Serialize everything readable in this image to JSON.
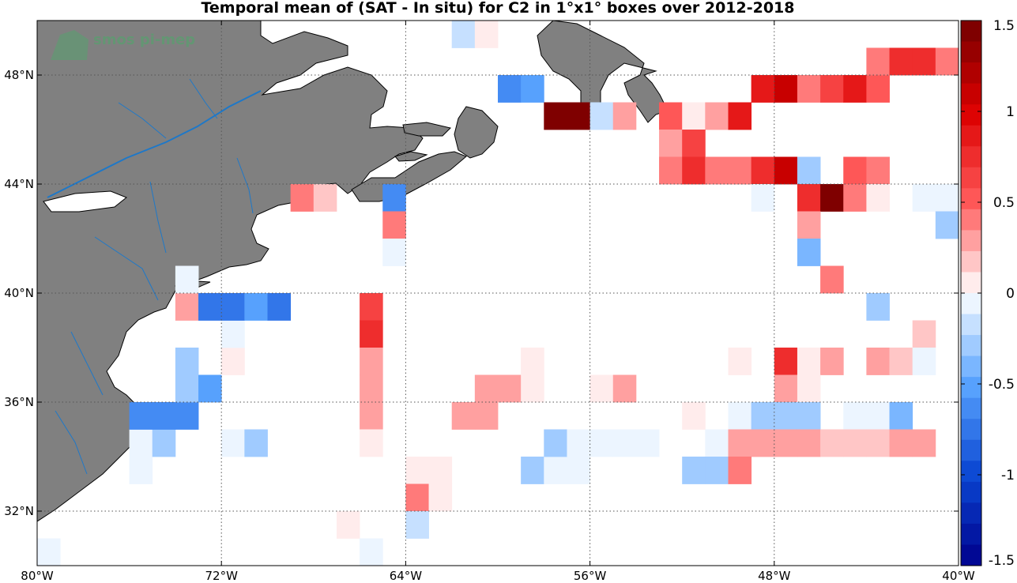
{
  "chart_data": {
    "type": "heatmap",
    "title": "Temporal mean of (SAT - In situ) for C2 in 1°x1° boxes over 2012-2018",
    "x_axis": {
      "range": [
        -80,
        -40
      ],
      "ticks": [
        -80,
        -72,
        -64,
        -56,
        -48,
        -40
      ],
      "tick_labels": [
        "80°W",
        "72°W",
        "64°W",
        "56°W",
        "48°W",
        "40°W"
      ]
    },
    "y_axis": {
      "range": [
        30,
        50
      ],
      "ticks": [
        32,
        36,
        40,
        44,
        48
      ],
      "tick_labels": [
        "32°N",
        "36°N",
        "40°N",
        "44°N",
        "48°N"
      ]
    },
    "grid": true,
    "colorbar": {
      "range": [
        -1.5,
        1.5
      ],
      "ticks": [
        1.5,
        1,
        0.5,
        0,
        -0.5,
        -1,
        -1.5
      ],
      "tick_labels": [
        "1.5",
        "1",
        "0.5",
        "0",
        "-0.5",
        "-1",
        "-1.5"
      ],
      "placement": "right"
    },
    "logo": "smos pi-mep",
    "cells": [
      {
        "lon": -79.5,
        "lat": 30.5,
        "value": -0.1
      },
      {
        "lon": -75.5,
        "lat": 33.5,
        "value": -0.1
      },
      {
        "lon": -75.5,
        "lat": 34.5,
        "value": -0.1
      },
      {
        "lon": -74.5,
        "lat": 34.5,
        "value": -0.3
      },
      {
        "lon": -75.5,
        "lat": 35.5,
        "value": -0.6
      },
      {
        "lon": -74.5,
        "lat": 35.5,
        "value": -0.6
      },
      {
        "lon": -73.5,
        "lat": 35.5,
        "value": -0.6
      },
      {
        "lon": -73.5,
        "lat": 36.5,
        "value": -0.3
      },
      {
        "lon": -72.5,
        "lat": 36.5,
        "value": -0.5
      },
      {
        "lon": -73.5,
        "lat": 37.5,
        "value": -0.3
      },
      {
        "lon": -71.5,
        "lat": 34.5,
        "value": -0.1
      },
      {
        "lon": -70.5,
        "lat": 34.5,
        "value": -0.3
      },
      {
        "lon": -71.5,
        "lat": 37.5,
        "value": 0.1
      },
      {
        "lon": -71.5,
        "lat": 38.5,
        "value": -0.1
      },
      {
        "lon": -73.5,
        "lat": 39.5,
        "value": 0.3
      },
      {
        "lon": -72.5,
        "lat": 39.5,
        "value": -0.7
      },
      {
        "lon": -71.5,
        "lat": 39.5,
        "value": -0.8
      },
      {
        "lon": -70.5,
        "lat": 39.5,
        "value": -0.5
      },
      {
        "lon": -69.5,
        "lat": 39.5,
        "value": -0.7
      },
      {
        "lon": -73.5,
        "lat": 40.5,
        "value": -0.05
      },
      {
        "lon": -68.5,
        "lat": 43.5,
        "value": 0.4
      },
      {
        "lon": -67.5,
        "lat": 43.5,
        "value": 0.15
      },
      {
        "lon": -64.5,
        "lat": 43.5,
        "value": -0.6
      },
      {
        "lon": -64.5,
        "lat": 42.5,
        "value": 0.4
      },
      {
        "lon": -64.5,
        "lat": 41.5,
        "value": -0.1
      },
      {
        "lon": -65.5,
        "lat": 39.5,
        "value": 0.6
      },
      {
        "lon": -65.5,
        "lat": 38.5,
        "value": 0.8
      },
      {
        "lon": -65.5,
        "lat": 37.5,
        "value": 0.25
      },
      {
        "lon": -65.5,
        "lat": 36.5,
        "value": 0.25
      },
      {
        "lon": -65.5,
        "lat": 35.5,
        "value": 0.25
      },
      {
        "lon": -65.5,
        "lat": 34.5,
        "value": 0.1
      },
      {
        "lon": -66.5,
        "lat": 31.5,
        "value": 0.1
      },
      {
        "lon": -65.5,
        "lat": 30.5,
        "value": -0.1
      },
      {
        "lon": -63.5,
        "lat": 33.5,
        "value": 0.1
      },
      {
        "lon": -62.5,
        "lat": 33.5,
        "value": 0.1
      },
      {
        "lon": -63.5,
        "lat": 32.5,
        "value": 0.35
      },
      {
        "lon": -62.5,
        "lat": 32.5,
        "value": 0.1
      },
      {
        "lon": -63.5,
        "lat": 31.5,
        "value": -0.2
      },
      {
        "lon": -61.5,
        "lat": 35.5,
        "value": 0.3
      },
      {
        "lon": -60.5,
        "lat": 35.5,
        "value": 0.3
      },
      {
        "lon": -60.5,
        "lat": 36.5,
        "value": 0.25
      },
      {
        "lon": -59.5,
        "lat": 36.5,
        "value": 0.25
      },
      {
        "lon": -58.5,
        "lat": 37.5,
        "value": 0.1
      },
      {
        "lon": -58.5,
        "lat": 36.5,
        "value": 0.1
      },
      {
        "lon": -58.5,
        "lat": 33.5,
        "value": -0.25
      },
      {
        "lon": -57.5,
        "lat": 33.5,
        "value": -0.1
      },
      {
        "lon": -56.5,
        "lat": 33.5,
        "value": -0.1
      },
      {
        "lon": -57.5,
        "lat": 34.5,
        "value": -0.25
      },
      {
        "lon": -56.5,
        "lat": 34.5,
        "value": -0.1
      },
      {
        "lon": -55.5,
        "lat": 34.5,
        "value": -0.1
      },
      {
        "lon": -54.5,
        "lat": 34.5,
        "value": -0.1
      },
      {
        "lon": -53.5,
        "lat": 34.5,
        "value": -0.1
      },
      {
        "lon": -55.5,
        "lat": 36.5,
        "value": 0.1
      },
      {
        "lon": -54.5,
        "lat": 36.5,
        "value": 0.25
      },
      {
        "lon": -61.5,
        "lat": 49.5,
        "value": -0.2
      },
      {
        "lon": -60.5,
        "lat": 49.5,
        "value": 0.1
      },
      {
        "lon": -59.5,
        "lat": 47.5,
        "value": -0.6
      },
      {
        "lon": -58.5,
        "lat": 47.5,
        "value": -0.5
      },
      {
        "lon": -57.5,
        "lat": 46.5,
        "value": 1.4
      },
      {
        "lon": -56.5,
        "lat": 46.5,
        "value": 1.4
      },
      {
        "lon": -55.5,
        "lat": 46.5,
        "value": -0.2
      },
      {
        "lon": -54.5,
        "lat": 46.5,
        "value": 0.25
      },
      {
        "lon": -52.5,
        "lat": 46.5,
        "value": 0.5
      },
      {
        "lon": -51.5,
        "lat": 46.5,
        "value": 0.1
      },
      {
        "lon": -50.5,
        "lat": 46.5,
        "value": 0.3
      },
      {
        "lon": -49.5,
        "lat": 46.5,
        "value": 0.85
      },
      {
        "lon": -52.5,
        "lat": 45.5,
        "value": 0.25
      },
      {
        "lon": -51.5,
        "lat": 45.5,
        "value": 0.65
      },
      {
        "lon": -52.5,
        "lat": 44.5,
        "value": 0.4
      },
      {
        "lon": -51.5,
        "lat": 44.5,
        "value": 0.75
      },
      {
        "lon": -50.5,
        "lat": 44.5,
        "value": 0.4
      },
      {
        "lon": -49.5,
        "lat": 44.5,
        "value": 0.35
      },
      {
        "lon": -48.5,
        "lat": 44.5,
        "value": 0.75
      },
      {
        "lon": -47.5,
        "lat": 44.5,
        "value": 1.05
      },
      {
        "lon": -46.5,
        "lat": 44.5,
        "value": -0.3
      },
      {
        "lon": -44.5,
        "lat": 44.5,
        "value": 0.5
      },
      {
        "lon": -43.5,
        "lat": 44.5,
        "value": 0.4
      },
      {
        "lon": -48.5,
        "lat": 47.5,
        "value": 0.85
      },
      {
        "lon": -47.5,
        "lat": 47.5,
        "value": 1.05
      },
      {
        "lon": -46.5,
        "lat": 47.5,
        "value": 0.35
      },
      {
        "lon": -45.5,
        "lat": 47.5,
        "value": 0.6
      },
      {
        "lon": -44.5,
        "lat": 47.5,
        "value": 0.9
      },
      {
        "lon": -43.5,
        "lat": 47.5,
        "value": 0.5
      },
      {
        "lon": -43.5,
        "lat": 48.5,
        "value": 0.35
      },
      {
        "lon": -42.5,
        "lat": 48.5,
        "value": 0.8
      },
      {
        "lon": -41.5,
        "lat": 48.5,
        "value": 0.8
      },
      {
        "lon": -40.5,
        "lat": 48.5,
        "value": 0.4
      },
      {
        "lon": -48.5,
        "lat": 43.5,
        "value": -0.1
      },
      {
        "lon": -46.5,
        "lat": 43.5,
        "value": 0.8
      },
      {
        "lon": -45.5,
        "lat": 43.5,
        "value": 1.4
      },
      {
        "lon": -44.5,
        "lat": 43.5,
        "value": 0.4
      },
      {
        "lon": -43.5,
        "lat": 43.5,
        "value": 0.1
      },
      {
        "lon": -41.5,
        "lat": 43.5,
        "value": -0.1
      },
      {
        "lon": -40.5,
        "lat": 43.5,
        "value": -0.1
      },
      {
        "lon": -40.5,
        "lat": 42.5,
        "value": -0.25
      },
      {
        "lon": -46.5,
        "lat": 42.5,
        "value": 0.25
      },
      {
        "lon": -46.5,
        "lat": 41.5,
        "value": -0.45
      },
      {
        "lon": -45.5,
        "lat": 40.5,
        "value": 0.45
      },
      {
        "lon": -43.5,
        "lat": 39.5,
        "value": -0.25
      },
      {
        "lon": -41.5,
        "lat": 38.5,
        "value": 0.15
      },
      {
        "lon": -49.5,
        "lat": 37.5,
        "value": 0.1
      },
      {
        "lon": -47.5,
        "lat": 37.5,
        "value": 0.7
      },
      {
        "lon": -46.5,
        "lat": 37.5,
        "value": 0.1
      },
      {
        "lon": -45.5,
        "lat": 37.5,
        "value": 0.3
      },
      {
        "lon": -43.5,
        "lat": 37.5,
        "value": 0.25
      },
      {
        "lon": -42.5,
        "lat": 37.5,
        "value": 0.15
      },
      {
        "lon": -41.5,
        "lat": 37.5,
        "value": -0.1
      },
      {
        "lon": -47.5,
        "lat": 36.5,
        "value": 0.25
      },
      {
        "lon": -46.5,
        "lat": 36.5,
        "value": 0.1
      },
      {
        "lon": -51.5,
        "lat": 35.5,
        "value": 0.1
      },
      {
        "lon": -49.5,
        "lat": 35.5,
        "value": -0.1
      },
      {
        "lon": -48.5,
        "lat": 35.5,
        "value": -0.25
      },
      {
        "lon": -47.5,
        "lat": 35.5,
        "value": -0.25
      },
      {
        "lon": -46.5,
        "lat": 35.5,
        "value": -0.25
      },
      {
        "lon": -44.5,
        "lat": 35.5,
        "value": -0.1
      },
      {
        "lon": -43.5,
        "lat": 35.5,
        "value": -0.1
      },
      {
        "lon": -42.5,
        "lat": 35.5,
        "value": -0.35
      },
      {
        "lon": -50.5,
        "lat": 34.5,
        "value": -0.1
      },
      {
        "lon": -49.5,
        "lat": 34.5,
        "value": 0.25
      },
      {
        "lon": -48.5,
        "lat": 34.5,
        "value": 0.25
      },
      {
        "lon": -47.5,
        "lat": 34.5,
        "value": 0.25
      },
      {
        "lon": -46.5,
        "lat": 34.5,
        "value": 0.25
      },
      {
        "lon": -45.5,
        "lat": 34.5,
        "value": 0.15
      },
      {
        "lon": -44.5,
        "lat": 34.5,
        "value": 0.15
      },
      {
        "lon": -43.5,
        "lat": 34.5,
        "value": 0.15
      },
      {
        "lon": -42.5,
        "lat": 34.5,
        "value": 0.25
      },
      {
        "lon": -41.5,
        "lat": 34.5,
        "value": 0.25
      },
      {
        "lon": -51.5,
        "lat": 33.5,
        "value": -0.25
      },
      {
        "lon": -50.5,
        "lat": 33.5,
        "value": -0.25
      },
      {
        "lon": -49.5,
        "lat": 33.5,
        "value": 0.4
      }
    ]
  },
  "colors": {
    "land": "#808080",
    "land_edge": "#000000",
    "river": "#1e78c8",
    "grid": "#555555"
  }
}
